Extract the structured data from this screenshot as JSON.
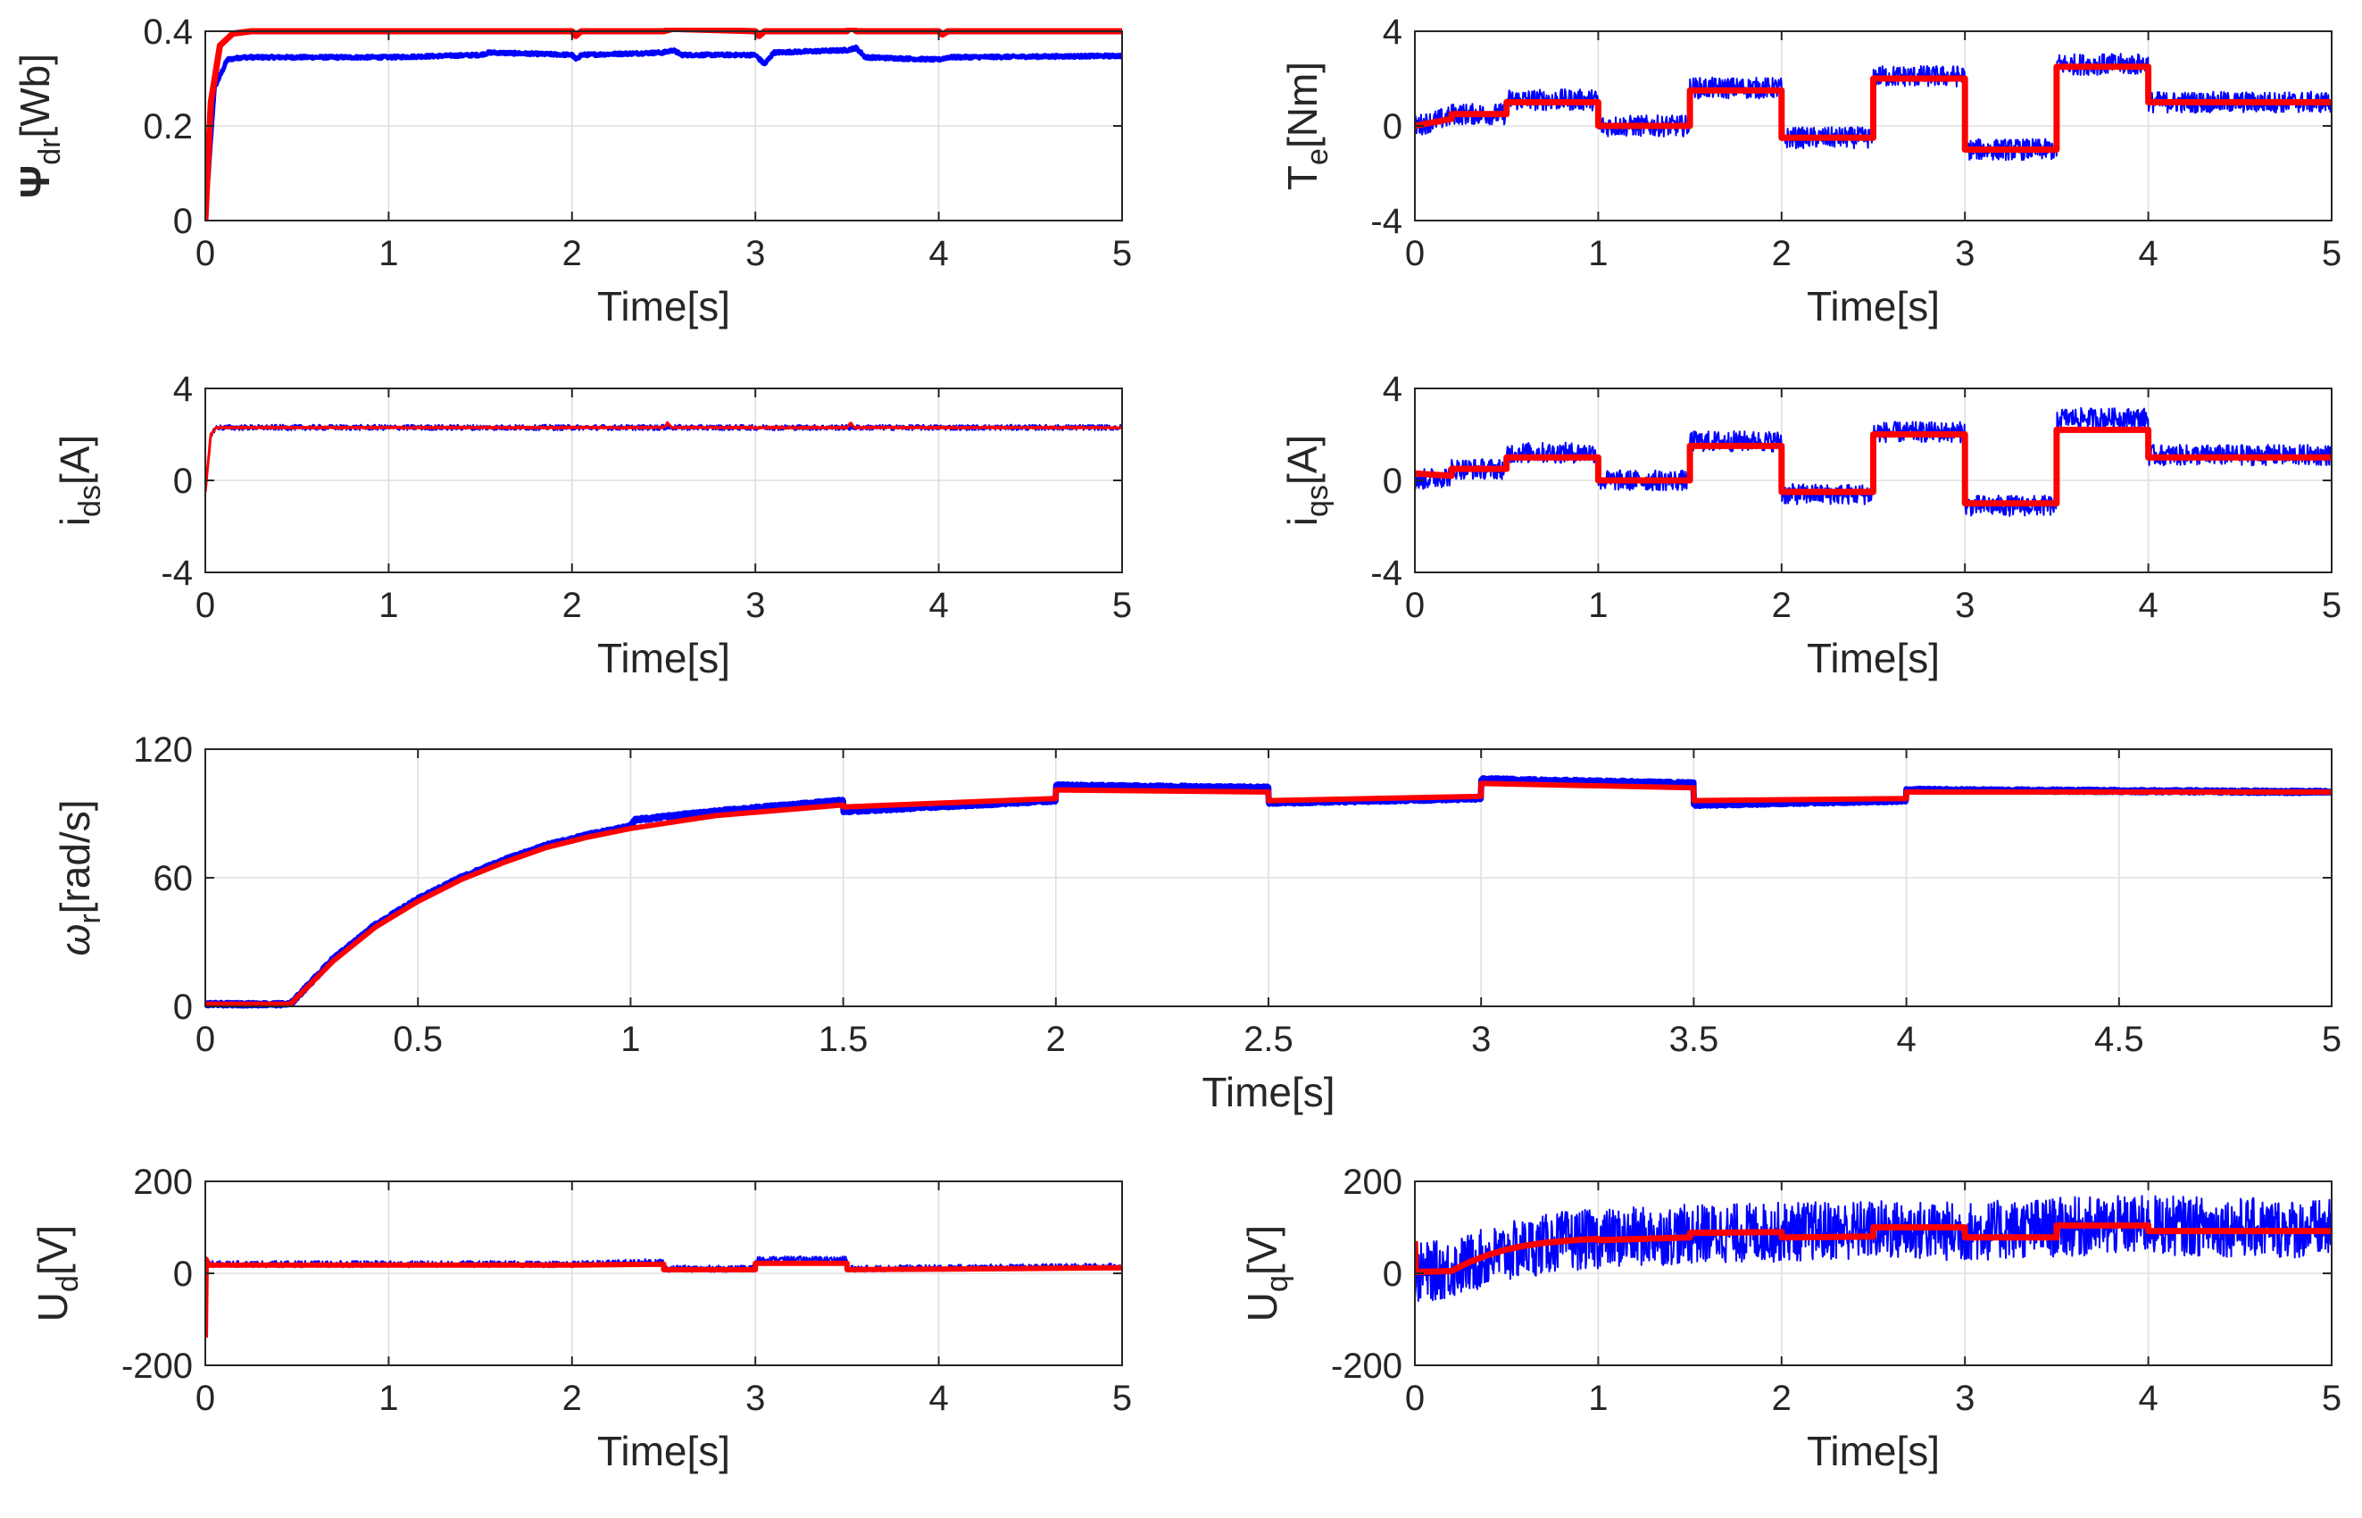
{
  "figure": {
    "colors": {
      "measured": "#0000ff",
      "reference": "#ff0000",
      "axis": "#262626",
      "grid": "#dfdfdf"
    }
  },
  "chart_data": [
    {
      "id": "psi",
      "type": "line",
      "ylabel": {
        "main": "Ψ",
        "sub": "dr",
        "unit": "[Wb]"
      },
      "xlabel": "Time[s]",
      "xlim": [
        0,
        5
      ],
      "ylim": [
        0,
        0.4
      ],
      "xticks": [
        0,
        1,
        2,
        3,
        4,
        5
      ],
      "xtick_labels": [
        "0",
        "1",
        "2",
        "3",
        "4",
        "5"
      ],
      "yticks": [
        0,
        0.2,
        0.4
      ],
      "ytick_labels": [
        "0",
        "0.2",
        "0.4"
      ],
      "series": [
        {
          "name": "measured",
          "color": "#0000ff",
          "width": 5,
          "noise": 0.003,
          "x": [
            0,
            0.05,
            0.12,
            0.2,
            1.0,
            1.5,
            1.55,
            2.0,
            2.02,
            2.05,
            2.5,
            2.55,
            2.6,
            3.0,
            3.05,
            3.1,
            3.5,
            3.55,
            3.6,
            4.0,
            4.05,
            5.0
          ],
          "y": [
            0,
            0.28,
            0.34,
            0.345,
            0.345,
            0.35,
            0.355,
            0.35,
            0.34,
            0.35,
            0.355,
            0.36,
            0.35,
            0.35,
            0.33,
            0.355,
            0.36,
            0.365,
            0.345,
            0.34,
            0.345,
            0.348
          ]
        },
        {
          "name": "reference",
          "color": "#ff0000",
          "width": 7,
          "noise": 0.0,
          "x": [
            0,
            0.03,
            0.08,
            0.15,
            0.25,
            2.0,
            2.02,
            2.05,
            2.5,
            2.55,
            3.0,
            3.02,
            3.05,
            3.5,
            3.52,
            3.55,
            4.0,
            4.02,
            4.05,
            5.0
          ],
          "y": [
            0,
            0.25,
            0.37,
            0.395,
            0.4,
            0.4,
            0.39,
            0.4,
            0.4,
            0.405,
            0.4,
            0.39,
            0.4,
            0.4,
            0.41,
            0.4,
            0.4,
            0.393,
            0.4,
            0.4
          ]
        }
      ]
    },
    {
      "id": "te",
      "type": "line",
      "ylabel": {
        "main": "T",
        "sub": "e",
        "unit": "[Nm]"
      },
      "xlabel": "Time[s]",
      "xlim": [
        0,
        5
      ],
      "ylim": [
        -4,
        4
      ],
      "xticks": [
        0,
        1,
        2,
        3,
        4,
        5
      ],
      "xtick_labels": [
        "0",
        "1",
        "2",
        "3",
        "4",
        "5"
      ],
      "yticks": [
        -4,
        0,
        4
      ],
      "ytick_labels": [
        "-4",
        "0",
        "4"
      ],
      "series": [
        {
          "name": "measured",
          "color": "#0000ff",
          "width": 2,
          "noise": 0.45,
          "x": [
            0,
            0.2,
            0.2,
            0.5,
            0.5,
            1.0,
            1.0,
            1.5,
            1.5,
            2.0,
            2.0,
            2.5,
            2.5,
            3.0,
            3.0,
            3.5,
            3.5,
            4.0,
            4.0,
            5.0
          ],
          "y": [
            0,
            0.4,
            0.5,
            0.5,
            1.1,
            1.1,
            0,
            0,
            1.6,
            1.6,
            -0.5,
            -0.5,
            2.1,
            2.1,
            -1.0,
            -1.0,
            2.6,
            2.6,
            1.0,
            1.0
          ]
        },
        {
          "name": "reference",
          "color": "#ff0000",
          "width": 7,
          "noise": 0.0,
          "x": [
            0,
            0.2,
            0.2,
            0.5,
            0.5,
            1.0,
            1.0,
            1.5,
            1.5,
            2.0,
            2.0,
            2.5,
            2.5,
            3.0,
            3.0,
            3.5,
            3.5,
            4.0,
            4.0,
            5.0
          ],
          "y": [
            0,
            0.3,
            0.5,
            0.5,
            1.0,
            1.0,
            0,
            0,
            1.5,
            1.5,
            -0.5,
            -0.5,
            2.0,
            2.0,
            -1.0,
            -1.0,
            2.5,
            2.5,
            1.0,
            1.0
          ]
        }
      ]
    },
    {
      "id": "ids",
      "type": "line",
      "ylabel": {
        "main": "i",
        "sub": "ds",
        "unit": "[A]"
      },
      "xlabel": "Time[s]",
      "xlim": [
        0,
        5
      ],
      "ylim": [
        -4,
        4
      ],
      "xticks": [
        0,
        1,
        2,
        3,
        4,
        5
      ],
      "xtick_labels": [
        "0",
        "1",
        "2",
        "3",
        "4",
        "5"
      ],
      "yticks": [
        -4,
        0,
        4
      ],
      "ytick_labels": [
        "-4",
        "0",
        "4"
      ],
      "series": [
        {
          "name": "measured",
          "color": "#0000ff",
          "width": 2,
          "noise": 0.12,
          "x": [
            0,
            0.03,
            0.06,
            5.0
          ],
          "y": [
            -0.4,
            2.0,
            2.3,
            2.3
          ]
        },
        {
          "name": "reference",
          "color": "#ff0000",
          "width": 3,
          "noise": 0.03,
          "x": [
            0,
            0.03,
            0.06,
            2.5,
            2.52,
            2.54,
            3.5,
            3.52,
            3.54,
            5.0
          ],
          "y": [
            -0.5,
            2.0,
            2.3,
            2.3,
            2.5,
            2.3,
            2.3,
            2.5,
            2.3,
            2.3
          ]
        }
      ]
    },
    {
      "id": "iqs",
      "type": "line",
      "ylabel": {
        "main": "i",
        "sub": "qs",
        "unit": "[A]"
      },
      "xlabel": "Time[s]",
      "xlim": [
        0,
        5
      ],
      "ylim": [
        -4,
        4
      ],
      "xticks": [
        0,
        1,
        2,
        3,
        4,
        5
      ],
      "xtick_labels": [
        "0",
        "1",
        "2",
        "3",
        "4",
        "5"
      ],
      "yticks": [
        -4,
        0,
        4
      ],
      "ytick_labels": [
        "-4",
        "0",
        "4"
      ],
      "series": [
        {
          "name": "measured",
          "color": "#0000ff",
          "width": 2,
          "noise": 0.45,
          "x": [
            0,
            0.2,
            0.2,
            0.5,
            0.5,
            1.0,
            1.0,
            1.5,
            1.5,
            2.0,
            2.0,
            2.5,
            2.5,
            3.0,
            3.0,
            3.5,
            3.5,
            4.0,
            4.0,
            5.0
          ],
          "y": [
            0,
            0.2,
            0.5,
            0.5,
            1.2,
            1.2,
            0,
            0,
            1.7,
            1.7,
            -0.6,
            -0.6,
            2.1,
            2.1,
            -1.1,
            -1.1,
            2.7,
            2.7,
            1.1,
            1.1
          ]
        },
        {
          "name": "reference",
          "color": "#ff0000",
          "width": 7,
          "noise": 0.0,
          "x": [
            0,
            0.2,
            0.2,
            0.5,
            0.5,
            1.0,
            1.0,
            1.5,
            1.5,
            2.0,
            2.0,
            2.5,
            2.5,
            3.0,
            3.0,
            3.5,
            3.5,
            4.0,
            4.0,
            5.0
          ],
          "y": [
            0.3,
            0.2,
            0.5,
            0.5,
            1.0,
            1.0,
            0,
            0,
            1.5,
            1.5,
            -0.5,
            -0.5,
            2.0,
            2.0,
            -1.0,
            -1.0,
            2.2,
            2.2,
            1.0,
            1.0
          ]
        }
      ]
    },
    {
      "id": "wr",
      "type": "line",
      "ylabel": {
        "main": "ω",
        "sub": "r",
        "unit": "[rad/s]"
      },
      "xlabel": "Time[s]",
      "xlim": [
        0,
        5
      ],
      "ylim": [
        0,
        120
      ],
      "xticks": [
        0,
        0.5,
        1,
        1.5,
        2,
        2.5,
        3,
        3.5,
        4,
        4.5,
        5
      ],
      "xtick_labels": [
        "0",
        "0.5",
        "1",
        "1.5",
        "2",
        "2.5",
        "3",
        "3.5",
        "4",
        "4.5",
        "5"
      ],
      "yticks": [
        0,
        60,
        120
      ],
      "ytick_labels": [
        "0",
        "60",
        "120"
      ],
      "series": [
        {
          "name": "measured",
          "color": "#0000ff",
          "width": 7,
          "noise": 0.6,
          "x": [
            0,
            0.2,
            0.3,
            0.4,
            0.5,
            0.6,
            0.7,
            0.8,
            0.9,
            1.0,
            1.01,
            1.2,
            1.5,
            1.5,
            2.0,
            2.0,
            2.5,
            2.5,
            3.0,
            3.0,
            3.5,
            3.5,
            4.0,
            4.0,
            5.0
          ],
          "y": [
            1,
            1,
            22,
            38,
            50,
            60,
            68,
            75,
            80,
            84,
            87,
            91,
            96,
            91,
            96,
            103,
            102,
            95,
            97,
            106,
            104,
            94,
            96,
            101,
            100
          ]
        },
        {
          "name": "reference",
          "color": "#ff0000",
          "width": 6,
          "noise": 0.0,
          "x": [
            0,
            0.2,
            0.3,
            0.4,
            0.5,
            0.6,
            0.7,
            0.8,
            0.9,
            1.0,
            1.2,
            1.5,
            1.5,
            2.0,
            2.0,
            2.5,
            2.5,
            3.0,
            3.0,
            3.5,
            3.5,
            4.0,
            4.0,
            5.0
          ],
          "y": [
            1,
            1,
            21,
            37,
            49,
            59,
            67,
            74,
            79,
            83,
            89,
            94,
            93,
            97,
            101,
            100,
            96,
            98,
            104,
            102,
            96,
            97,
            100,
            100
          ]
        }
      ]
    },
    {
      "id": "ud",
      "type": "line",
      "ylabel": {
        "main": "U",
        "sub": "d",
        "unit": "[V]"
      },
      "xlabel": "Time[s]",
      "xlim": [
        0,
        5
      ],
      "ylim": [
        -200,
        200
      ],
      "xticks": [
        0,
        1,
        2,
        3,
        4,
        5
      ],
      "xtick_labels": [
        "0",
        "1",
        "2",
        "3",
        "4",
        "5"
      ],
      "yticks": [
        -200,
        0,
        200
      ],
      "ytick_labels": [
        "-200",
        "0",
        "200"
      ],
      "series": [
        {
          "name": "measured",
          "color": "#0000ff",
          "width": 2,
          "noise": 7,
          "x": [
            0,
            0.01,
            0.02,
            0.05,
            2.0,
            2.5,
            2.5,
            3.0,
            3.0,
            3.5,
            3.5,
            5.0
          ],
          "y": [
            30,
            30,
            20,
            20,
            20,
            25,
            10,
            10,
            30,
            30,
            10,
            15
          ]
        },
        {
          "name": "reference",
          "color": "#ff0000",
          "width": 6,
          "noise": 0.0,
          "x": [
            0,
            0.005,
            0.01,
            0.02,
            0.05,
            2.0,
            2.5,
            2.5,
            3.0,
            3.0,
            3.5,
            3.5,
            5.0
          ],
          "y": [
            -140,
            30,
            25,
            18,
            18,
            18,
            20,
            8,
            8,
            22,
            22,
            8,
            12
          ]
        }
      ]
    },
    {
      "id": "uq",
      "type": "line",
      "ylabel": {
        "main": "U",
        "sub": "q",
        "unit": "[V]"
      },
      "xlabel": "Time[s]",
      "xlim": [
        0,
        5
      ],
      "ylim": [
        -200,
        200
      ],
      "xticks": [
        0,
        1,
        2,
        3,
        4,
        5
      ],
      "xtick_labels": [
        "0",
        "1",
        "2",
        "3",
        "4",
        "5"
      ],
      "yticks": [
        -200,
        0,
        200
      ],
      "ytick_labels": [
        "-200",
        "0",
        "200"
      ],
      "series": [
        {
          "name": "measured",
          "color": "#0000ff",
          "width": 2,
          "noise": 65,
          "x": [
            0,
            0.2,
            0.4,
            0.6,
            0.8,
            1.0,
            1.5,
            2.0,
            2.5,
            3.0,
            3.5,
            4.0,
            5.0
          ],
          "y": [
            0,
            10,
            35,
            55,
            70,
            75,
            85,
            90,
            95,
            90,
            100,
            105,
            95
          ]
        },
        {
          "name": "reference",
          "color": "#ff0000",
          "width": 7,
          "noise": 0.0,
          "x": [
            0,
            0.005,
            0.01,
            0.2,
            0.3,
            0.4,
            0.5,
            0.6,
            0.7,
            0.8,
            0.9,
            1.0,
            1.0,
            1.5,
            1.5,
            2.0,
            2.0,
            2.5,
            2.5,
            3.0,
            3.0,
            3.5,
            3.5,
            4.0,
            4.0,
            5.0
          ],
          "y": [
            70,
            5,
            3,
            5,
            25,
            40,
            52,
            60,
            66,
            70,
            73,
            75,
            72,
            78,
            88,
            90,
            78,
            80,
            100,
            100,
            78,
            78,
            104,
            104,
            92,
            92
          ]
        }
      ]
    }
  ]
}
